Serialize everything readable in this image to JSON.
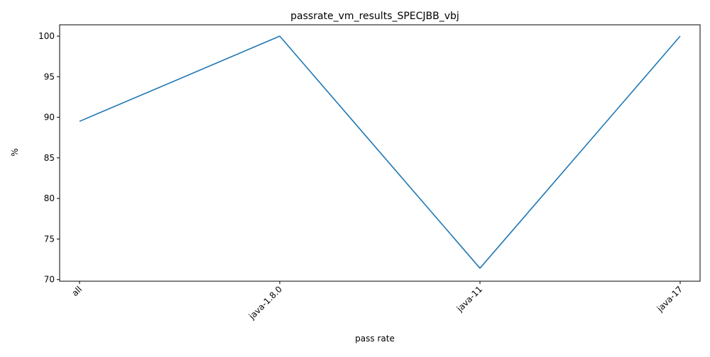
{
  "chart_data": {
    "type": "line",
    "title": "passrate_vm_results_SPECJBB_vbj",
    "xlabel": "pass rate",
    "ylabel": "%",
    "categories": [
      "all",
      "java-1.8.0",
      "java-11",
      "java-17"
    ],
    "series": [
      {
        "values": [
          89.5,
          100,
          71.4,
          100
        ],
        "color": "#1f77b4"
      }
    ],
    "ylim": [
      69.8,
      101.4
    ],
    "yticks": [
      70,
      75,
      80,
      85,
      90,
      95,
      100
    ],
    "grid": false,
    "legend": "none"
  }
}
